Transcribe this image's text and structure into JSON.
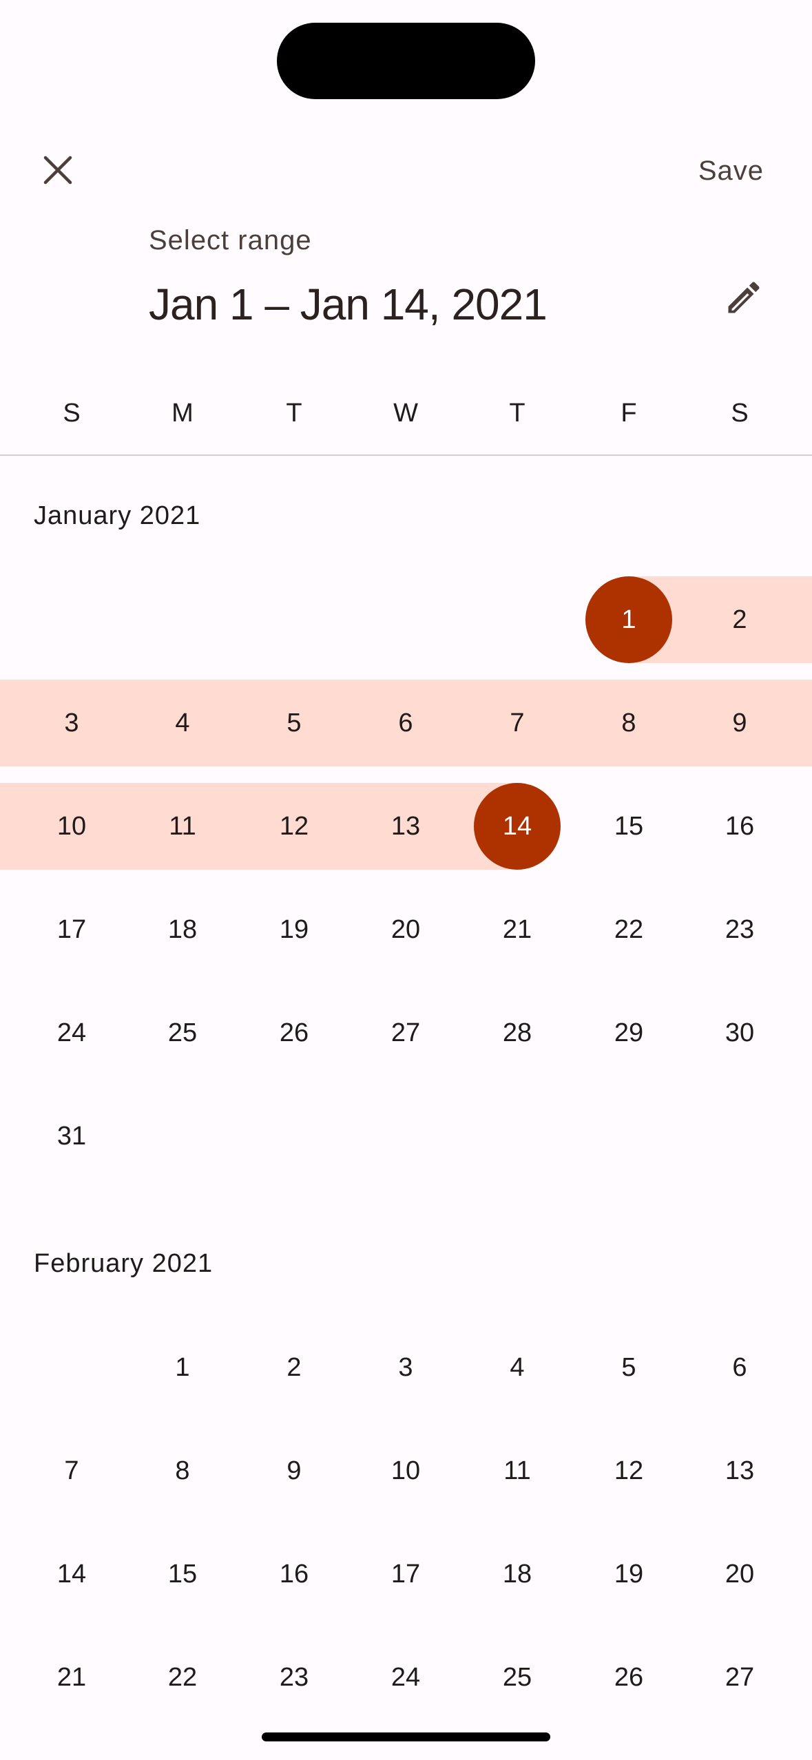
{
  "dialog": {
    "save_label": "Save",
    "select_label": "Select range",
    "range_title": "Jan 1 – Jan 14, 2021"
  },
  "icons": {
    "close": "close-icon",
    "edit": "pencil-icon"
  },
  "weekdays": [
    "S",
    "M",
    "T",
    "W",
    "T",
    "F",
    "S"
  ],
  "colors": {
    "background": "#FFFBFE",
    "selected": "#AE3100",
    "range": "#FFDBD1",
    "text": "#1F1B1A"
  },
  "months": [
    {
      "label": "January 2021",
      "start_weekday": 5,
      "days": 31,
      "range_start": 1,
      "range_end": 14
    },
    {
      "label": "February 2021",
      "start_weekday": 1,
      "days": 27
    }
  ]
}
